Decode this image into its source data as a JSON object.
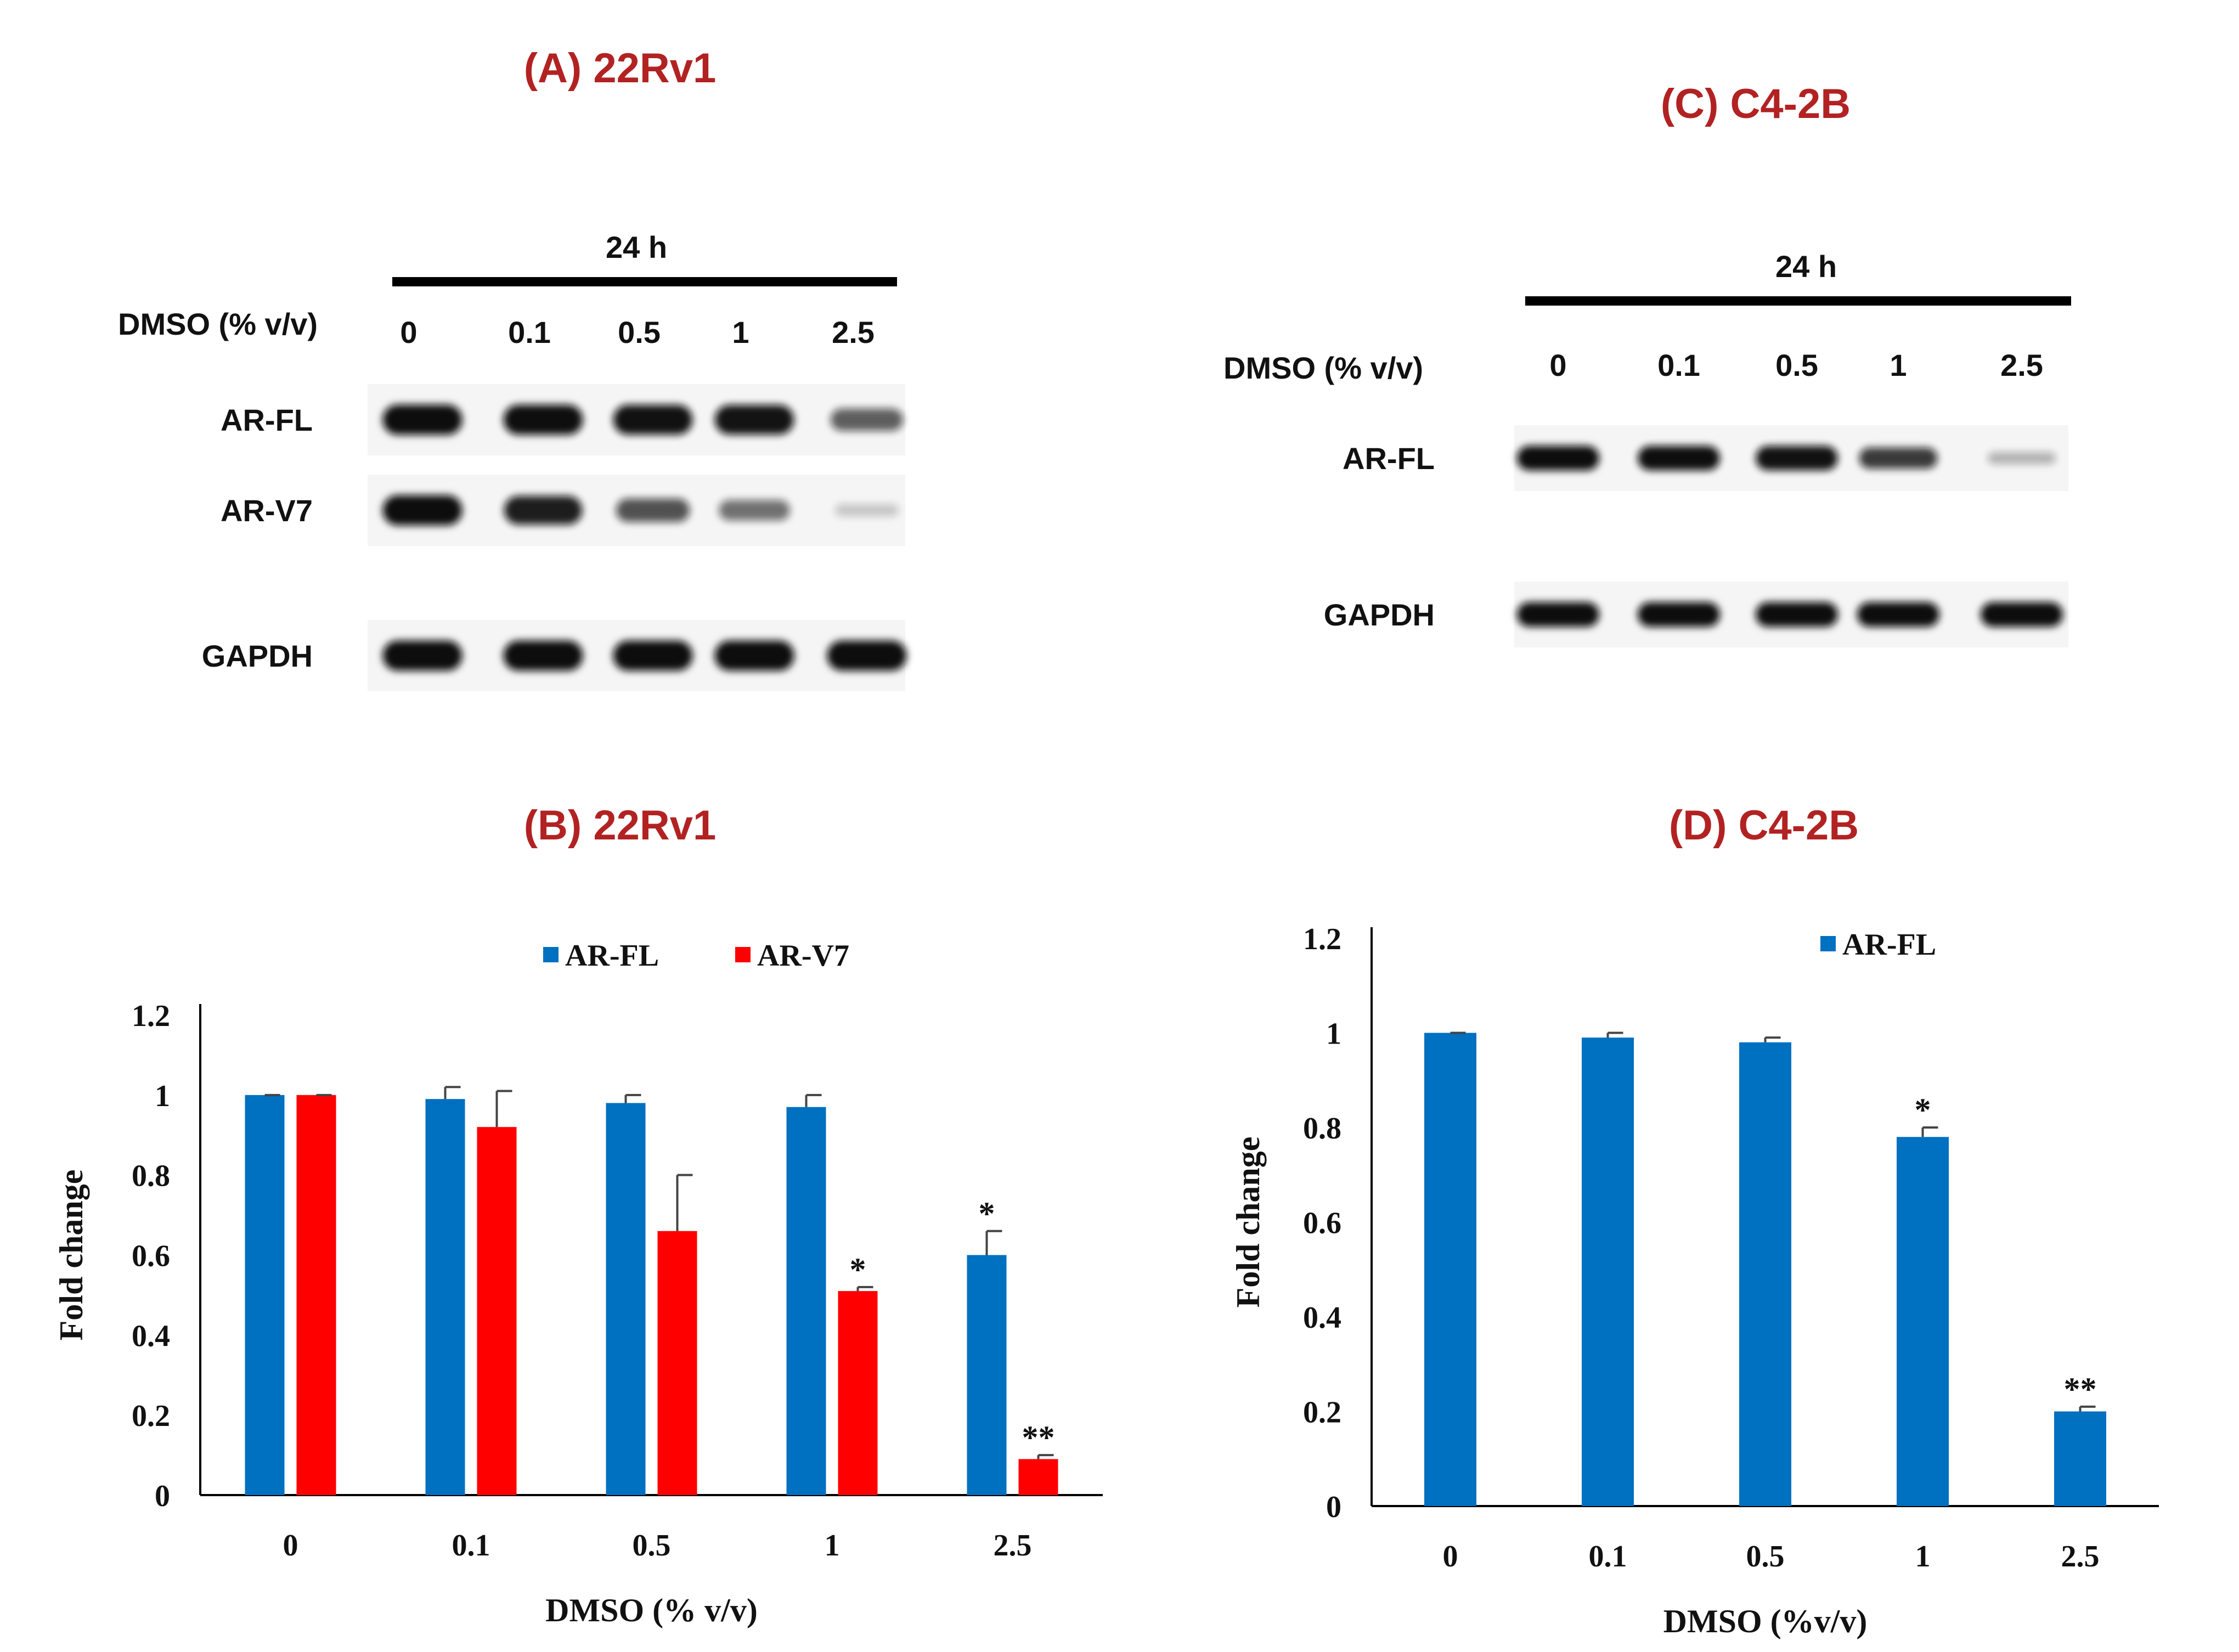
{
  "panel_a": {
    "title": "(A) 22Rv1",
    "time_label": "24 h",
    "treatment_label": "DMSO (% v/v)",
    "lanes": [
      "0",
      "0.1",
      "0.5",
      "1",
      "2.5"
    ],
    "bands": [
      {
        "label": "AR-FL",
        "intensity": [
          1.0,
          0.99,
          0.98,
          0.97,
          0.6
        ]
      },
      {
        "label": "AR-V7",
        "intensity": [
          1.0,
          0.92,
          0.66,
          0.51,
          0.09
        ]
      },
      {
        "label": "GAPDH",
        "intensity": [
          1.0,
          1.0,
          1.0,
          1.0,
          1.0
        ]
      }
    ]
  },
  "panel_c": {
    "title": "(C) C4-2B",
    "time_label": "24 h",
    "treatment_label": "DMSO (% v/v)",
    "lanes": [
      "0",
      "0.1",
      "0.5",
      "1",
      "2.5"
    ],
    "bands": [
      {
        "label": "AR-FL",
        "intensity": [
          1.0,
          0.99,
          0.98,
          0.78,
          0.2
        ]
      },
      {
        "label": "GAPDH",
        "intensity": [
          1.0,
          1.0,
          1.0,
          1.0,
          1.0
        ]
      }
    ]
  },
  "chart_data": [
    {
      "panel": "B",
      "type": "bar",
      "title": "(B) 22Rv1",
      "categories": [
        "0",
        "0.1",
        "0.5",
        "1",
        "2.5"
      ],
      "series": [
        {
          "name": "AR-FL",
          "color": "#0070c0",
          "values": [
            1.0,
            0.99,
            0.98,
            0.97,
            0.6
          ],
          "errors": [
            0.0,
            0.03,
            0.02,
            0.03,
            0.06
          ],
          "sig": [
            "",
            "",
            "",
            "",
            "*"
          ]
        },
        {
          "name": "AR-V7",
          "color": "#ff0000",
          "values": [
            1.0,
            0.92,
            0.66,
            0.51,
            0.09
          ],
          "errors": [
            0.0,
            0.09,
            0.14,
            0.01,
            0.01
          ],
          "sig": [
            "",
            "",
            "",
            "*",
            "**"
          ]
        }
      ],
      "xlabel": "DMSO (% v/v)",
      "ylabel": "Fold change",
      "ylim": [
        0,
        1.2
      ],
      "yticks": [
        "0",
        "0.2",
        "0.4",
        "0.6",
        "0.8",
        "1",
        "1.2"
      ],
      "legend": "top-center",
      "grid": false
    },
    {
      "panel": "D",
      "type": "bar",
      "title": "(D) C4-2B",
      "categories": [
        "0",
        "0.1",
        "0.5",
        "1",
        "2.5"
      ],
      "series": [
        {
          "name": "AR-FL",
          "color": "#0070c0",
          "values": [
            1.0,
            0.99,
            0.98,
            0.78,
            0.2
          ],
          "errors": [
            0.0,
            0.01,
            0.01,
            0.02,
            0.01
          ],
          "sig": [
            "",
            "",
            "",
            "*",
            "**"
          ]
        }
      ],
      "xlabel": "DMSO (%v/v)",
      "ylabel": "Fold change",
      "ylim": [
        0,
        1.2
      ],
      "yticks": [
        "0",
        "0.2",
        "0.4",
        "0.6",
        "0.8",
        "1",
        "1.2"
      ],
      "legend": "top-center",
      "grid": false
    }
  ]
}
